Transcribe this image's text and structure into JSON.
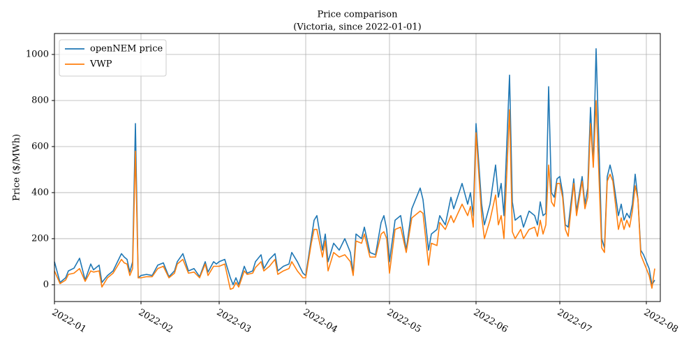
{
  "chart_data": {
    "type": "line",
    "title": "Price comparison",
    "subtitle": "(Victoria, since 2022-01-01)",
    "y_label": "Price ($/MWh)",
    "x": [
      "2022-01-01",
      "2022-01-03",
      "2022-01-05",
      "2022-01-06",
      "2022-01-08",
      "2022-01-10",
      "2022-01-12",
      "2022-01-14",
      "2022-01-15",
      "2022-01-17",
      "2022-01-18",
      "2022-01-20",
      "2022-01-22",
      "2022-01-25",
      "2022-01-26",
      "2022-01-27",
      "2022-01-28",
      "2022-01-29",
      "2022-01-30",
      "2022-01-31",
      "2022-02-01",
      "2022-02-03",
      "2022-02-05",
      "2022-02-07",
      "2022-02-09",
      "2022-02-11",
      "2022-02-13",
      "2022-02-14",
      "2022-02-16",
      "2022-02-18",
      "2022-02-20",
      "2022-02-22",
      "2022-02-24",
      "2022-02-25",
      "2022-02-27",
      "2022-02-28",
      "2022-03-01",
      "2022-03-03",
      "2022-03-05",
      "2022-03-06",
      "2022-03-07",
      "2022-03-08",
      "2022-03-10",
      "2022-03-11",
      "2022-03-13",
      "2022-03-14",
      "2022-03-16",
      "2022-03-17",
      "2022-03-19",
      "2022-03-21",
      "2022-03-22",
      "2022-03-24",
      "2022-03-26",
      "2022-03-27",
      "2022-03-29",
      "2022-03-31",
      "2022-04-01",
      "2022-04-03",
      "2022-04-04",
      "2022-04-05",
      "2022-04-07",
      "2022-04-08",
      "2022-04-09",
      "2022-04-11",
      "2022-04-13",
      "2022-04-15",
      "2022-04-17",
      "2022-04-18",
      "2022-04-19",
      "2022-04-21",
      "2022-04-22",
      "2022-04-24",
      "2022-04-26",
      "2022-04-28",
      "2022-04-29",
      "2022-04-30",
      "2022-05-01",
      "2022-05-03",
      "2022-05-05",
      "2022-05-07",
      "2022-05-09",
      "2022-05-12",
      "2022-05-13",
      "2022-05-15",
      "2022-05-16",
      "2022-05-18",
      "2022-05-19",
      "2022-05-21",
      "2022-05-23",
      "2022-05-24",
      "2022-05-27",
      "2022-05-29",
      "2022-05-30",
      "2022-05-31",
      "2022-06-01",
      "2022-06-03",
      "2022-06-04",
      "2022-06-06",
      "2022-06-08",
      "2022-06-09",
      "2022-06-10",
      "2022-06-11",
      "2022-06-13",
      "2022-06-14",
      "2022-06-15",
      "2022-06-17",
      "2022-06-18",
      "2022-06-20",
      "2022-06-22",
      "2022-06-23",
      "2022-06-24",
      "2022-06-25",
      "2022-06-26",
      "2022-06-27",
      "2022-06-28",
      "2022-06-29",
      "2022-06-30",
      "2022-07-01",
      "2022-07-02",
      "2022-07-03",
      "2022-07-04",
      "2022-07-06",
      "2022-07-07",
      "2022-07-09",
      "2022-07-10",
      "2022-07-11",
      "2022-07-12",
      "2022-07-13",
      "2022-07-14",
      "2022-07-16",
      "2022-07-17",
      "2022-07-18",
      "2022-07-19",
      "2022-07-20",
      "2022-07-22",
      "2022-07-23",
      "2022-07-24",
      "2022-07-25",
      "2022-07-26",
      "2022-07-27",
      "2022-07-28",
      "2022-07-29",
      "2022-07-30",
      "2022-07-31",
      "2022-08-02",
      "2022-08-03",
      "2022-08-04"
    ],
    "series": [
      {
        "name": "openNEM price",
        "color": "#1f77b4",
        "values": [
          100,
          10,
          30,
          60,
          72,
          115,
          20,
          90,
          65,
          85,
          10,
          40,
          60,
          135,
          120,
          110,
          55,
          100,
          700,
          30,
          40,
          45,
          40,
          85,
          95,
          35,
          60,
          100,
          135,
          60,
          70,
          35,
          100,
          55,
          100,
          90,
          100,
          110,
          30,
          0,
          30,
          0,
          80,
          50,
          60,
          100,
          130,
          70,
          110,
          135,
          60,
          80,
          90,
          140,
          100,
          50,
          40,
          200,
          280,
          300,
          150,
          220,
          100,
          180,
          150,
          200,
          140,
          50,
          220,
          200,
          250,
          140,
          130,
          270,
          300,
          240,
          100,
          280,
          300,
          150,
          330,
          420,
          370,
          150,
          220,
          240,
          300,
          260,
          380,
          330,
          440,
          350,
          400,
          300,
          700,
          350,
          260,
          350,
          520,
          380,
          440,
          300,
          910,
          360,
          280,
          300,
          250,
          320,
          300,
          260,
          360,
          300,
          310,
          860,
          400,
          380,
          460,
          470,
          400,
          260,
          250,
          460,
          320,
          470,
          350,
          420,
          770,
          520,
          1025,
          200,
          160,
          470,
          520,
          470,
          300,
          350,
          280,
          310,
          290,
          350,
          480,
          370,
          150,
          130,
          70,
          0,
          20
        ]
      },
      {
        "name": "VWP",
        "color": "#ff7f0e",
        "values": [
          60,
          5,
          20,
          45,
          50,
          70,
          15,
          60,
          55,
          60,
          -10,
          30,
          50,
          110,
          95,
          90,
          40,
          70,
          580,
          30,
          30,
          35,
          35,
          70,
          80,
          30,
          50,
          90,
          110,
          50,
          55,
          30,
          90,
          40,
          80,
          80,
          80,
          90,
          -20,
          -15,
          10,
          -10,
          60,
          45,
          50,
          75,
          100,
          60,
          80,
          110,
          45,
          60,
          70,
          100,
          60,
          30,
          30,
          180,
          240,
          240,
          120,
          190,
          60,
          140,
          120,
          130,
          100,
          40,
          190,
          180,
          220,
          120,
          120,
          220,
          230,
          200,
          50,
          240,
          250,
          140,
          290,
          320,
          310,
          85,
          180,
          170,
          270,
          240,
          300,
          270,
          350,
          300,
          340,
          250,
          660,
          300,
          200,
          280,
          390,
          260,
          300,
          200,
          760,
          230,
          200,
          240,
          200,
          240,
          250,
          210,
          280,
          220,
          260,
          520,
          360,
          340,
          440,
          440,
          380,
          240,
          210,
          440,
          300,
          450,
          330,
          380,
          700,
          510,
          800,
          160,
          140,
          450,
          480,
          450,
          240,
          290,
          240,
          280,
          250,
          320,
          430,
          370,
          130,
          100,
          40,
          -15,
          70
        ]
      }
    ],
    "xlim": [
      "2022-01-01",
      "2022-08-06"
    ],
    "xticks": [
      {
        "value": "2022-01-01",
        "label": "2022-01"
      },
      {
        "value": "2022-02-01",
        "label": "2022-02"
      },
      {
        "value": "2022-03-01",
        "label": "2022-03"
      },
      {
        "value": "2022-04-01",
        "label": "2022-04"
      },
      {
        "value": "2022-05-01",
        "label": "2022-05"
      },
      {
        "value": "2022-06-01",
        "label": "2022-06"
      },
      {
        "value": "2022-07-01",
        "label": "2022-07"
      },
      {
        "value": "2022-08-01",
        "label": "2022-08"
      }
    ],
    "ylim": [
      -73,
      1091
    ],
    "yticks": [
      0,
      200,
      400,
      600,
      800,
      1000
    ],
    "grid": true,
    "legend": "upper left"
  }
}
